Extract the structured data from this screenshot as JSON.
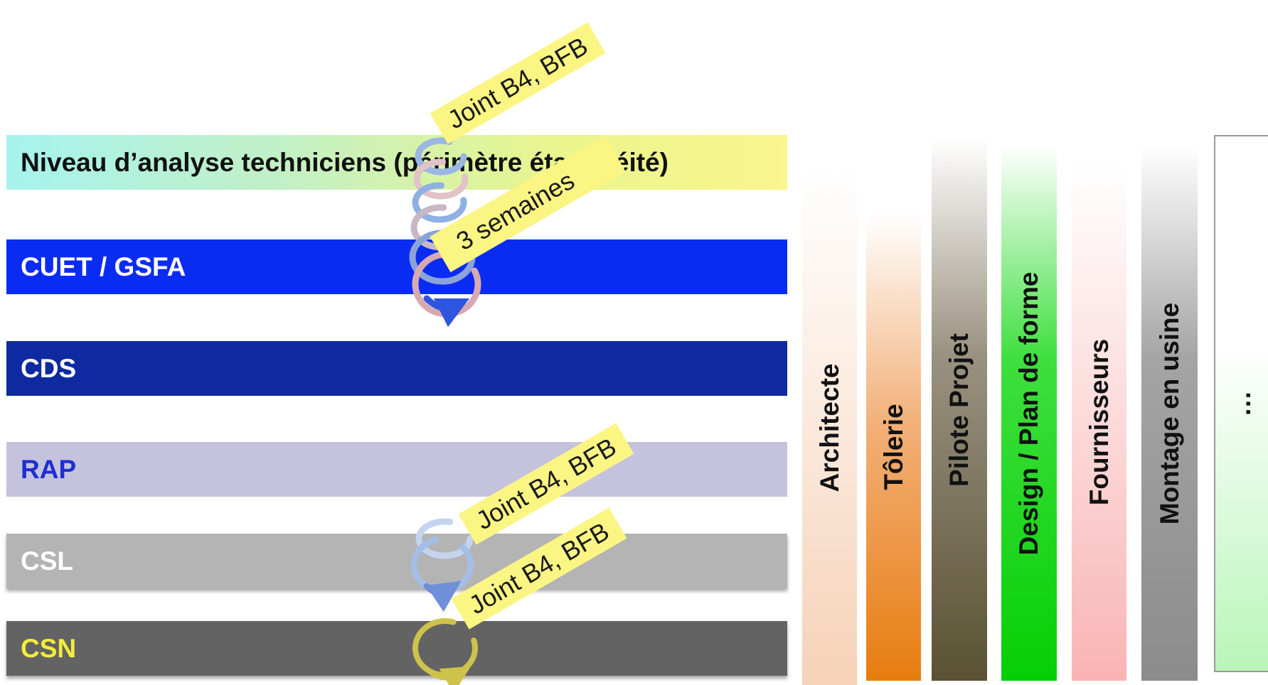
{
  "levels": [
    {
      "label": "Niveau d’analyse techniciens (périmètre étanchéité)",
      "bg": "linear-gradient(90deg,#a6f3ee 0%,#c2f0c6 35%,#e9f58e 70%,#faf58c 100%)",
      "color": "#111111"
    },
    {
      "label": "CUET / GSFA",
      "bg": "#0a2cf2",
      "color": "#ffffff"
    },
    {
      "label": "CDS",
      "bg": "#0f2aa0",
      "color": "#ffffff"
    },
    {
      "label": "RAP",
      "bg": "#c4c2dc",
      "color": "#1c2fd0"
    },
    {
      "label": "CSL",
      "bg": "#b4b4b4",
      "color": "#ffffff"
    },
    {
      "label": "CSN",
      "bg": "#636363",
      "color": "#f4ec3c"
    }
  ],
  "columns": [
    {
      "label": "Architecte",
      "bg": "linear-gradient(180deg,rgba(248,220,196,0) 0%,#f6d2b8 100%)"
    },
    {
      "label": "Tôlerie",
      "bg": "linear-gradient(180deg,rgba(238,140,50,0) 0%,#f2b079 45%,#e77d0f 100%)"
    },
    {
      "label": "Pilote Projet",
      "bg": "linear-gradient(180deg,rgba(90,80,50,0) 0%,#9a9180 40%,#5a5233 100%)"
    },
    {
      "label": "Design / Plan de forme",
      "bg": "linear-gradient(180deg,rgba(30,210,30,0) 0%,#3edf3e 40%,#06cf06 100%)"
    },
    {
      "label": "Fournisseurs",
      "bg": "linear-gradient(180deg,rgba(250,170,170,0) 0%,#f9b4b4 100%)"
    },
    {
      "label": "Montage en usine",
      "bg": "linear-gradient(180deg,rgba(130,130,130,0) 0%,#a4a4a4 40%,#8c8c8c 100%)"
    },
    {
      "label": "…",
      "bg": "linear-gradient(180deg,#ffffff 0%,#ffffff 40%,#b9f5b9 100%)"
    }
  ],
  "notes": [
    {
      "text": "Joint B4, BFB"
    },
    {
      "text": "3 semaines"
    },
    {
      "text": "Joint B4, BFB"
    },
    {
      "text": "Joint B4, BFB"
    }
  ]
}
